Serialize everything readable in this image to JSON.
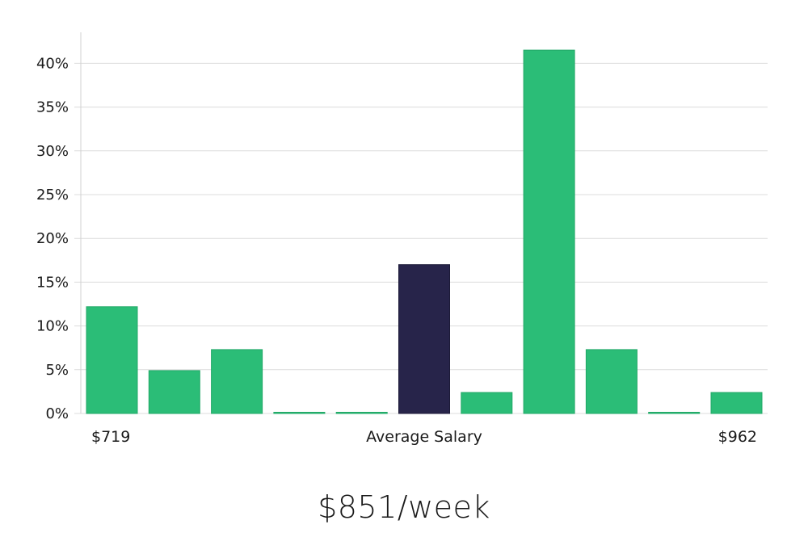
{
  "chart_data": {
    "type": "bar",
    "values": [
      12.2,
      4.9,
      7.3,
      0,
      0,
      17.0,
      2.4,
      41.5,
      7.3,
      0,
      2.4
    ],
    "highlight_index": 5,
    "ylim": [
      0,
      45
    ],
    "y_ticks": [
      "0%",
      "5%",
      "10%",
      "15%",
      "20%",
      "25%",
      "30%",
      "35%",
      "40%"
    ],
    "y_tick_values": [
      0,
      5,
      10,
      15,
      20,
      25,
      30,
      35,
      40
    ],
    "x_labels": {
      "left": "$719",
      "center": "Average Salary",
      "right": "$962"
    },
    "grid": true,
    "colors": {
      "bar": "#2bbd77",
      "highlight": "#27244a"
    }
  },
  "summary": {
    "salary": "$851/week"
  }
}
